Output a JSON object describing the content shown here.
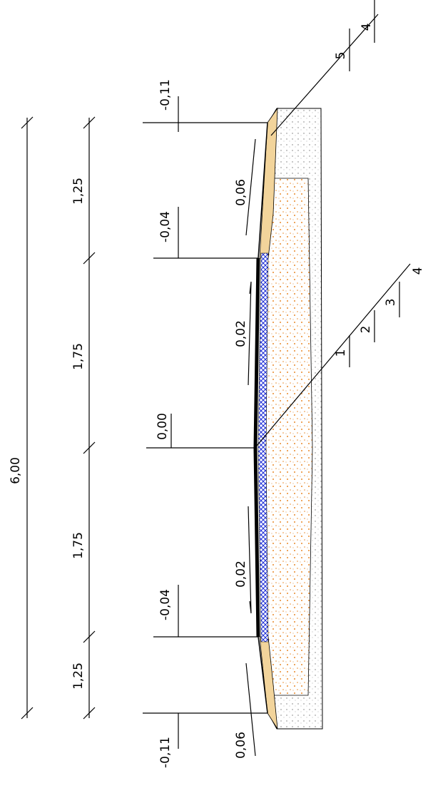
{
  "dimensions": {
    "total": "6,00",
    "segments": [
      "1,25",
      "1,75",
      "1,75",
      "1,25"
    ]
  },
  "elevations": [
    "-0,11",
    "-0,04",
    "0,00",
    "-0,04",
    "-0,11"
  ],
  "slopes": [
    "0,06",
    "0,02",
    "0,02",
    "0,06"
  ],
  "layer_callouts": [
    {
      "labels": [
        "5",
        "4"
      ]
    },
    {
      "labels": [
        "1",
        "2",
        "3",
        "4"
      ]
    }
  ]
}
